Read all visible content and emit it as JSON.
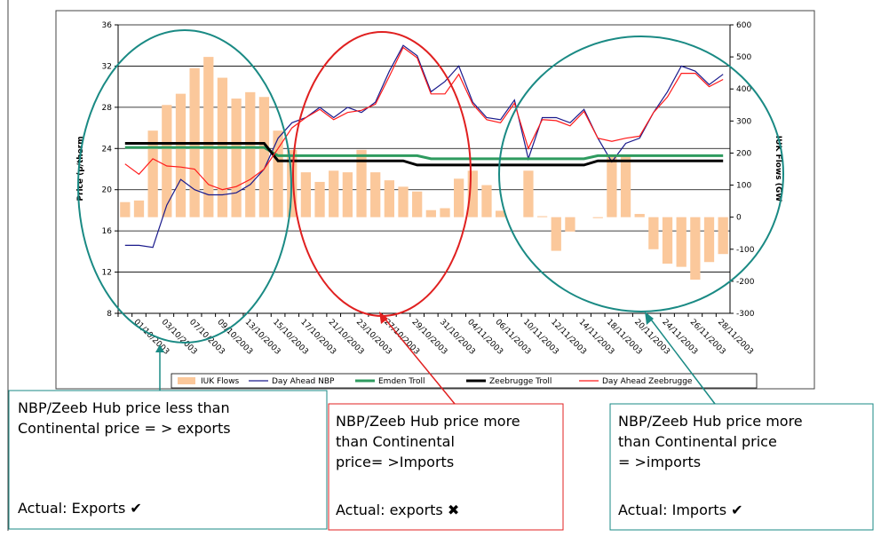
{
  "chart_data": {
    "type": "bar-line",
    "ylabel": "Price (p/therm",
    "y2label": "IUK Flows (GW",
    "categories": [
      null,
      "01/10/2003",
      null,
      "03/10/2003",
      null,
      "07/10/2003",
      null,
      "09/10/2003",
      null,
      "13/10/2003",
      null,
      "15/10/2003",
      null,
      "17/10/2003",
      null,
      "21/10/2003",
      null,
      "23/10/2003",
      null,
      "27/10/2003",
      null,
      "29/10/2003",
      null,
      "31/10/2003",
      null,
      "04/11/2003",
      null,
      "06/11/2003",
      null,
      "10/11/2003",
      null,
      "12/11/2003",
      null,
      "14/11/2003",
      null,
      "18/11/2003",
      null,
      "20/11/2003",
      null,
      "24/11/2003",
      null,
      "26/11/2003",
      null,
      "28/11/2003"
    ],
    "series": [
      {
        "name": "IUK Flows",
        "type": "bar",
        "axis": "y2",
        "color": "#fbc89b",
        "values": [
          47,
          52,
          270,
          350,
          385,
          465,
          500,
          435,
          370,
          390,
          375,
          270,
          210,
          140,
          110,
          145,
          140,
          210,
          140,
          115,
          95,
          80,
          22,
          28,
          120,
          145,
          100,
          20,
          0,
          145,
          3,
          -105,
          -45,
          0,
          -3,
          195,
          190,
          10,
          -100,
          -145,
          -155,
          -195,
          -140,
          -115
        ]
      },
      {
        "name": "Day Ahead NBP",
        "type": "line",
        "color": "#1a1a8c",
        "values": [
          14.6,
          14.6,
          14.4,
          18.5,
          21,
          20,
          19.5,
          19.5,
          19.7,
          20.5,
          22,
          25,
          26.5,
          27,
          28,
          27,
          28,
          27.5,
          28.5,
          31.5,
          34,
          33,
          29.5,
          30.5,
          32,
          28.5,
          27,
          26.8,
          28.7,
          23,
          27,
          27,
          26.5,
          27.8,
          25,
          22.7,
          24.5,
          25,
          27.5,
          29.5,
          32,
          31.5,
          30.2,
          31.2
        ]
      },
      {
        "name": "Emden Troll",
        "type": "line",
        "color": "#2e9b5f",
        "width": 3,
        "values": [
          24.1,
          24.1,
          24.1,
          24.1,
          24.1,
          24.1,
          24.1,
          24.1,
          24.1,
          24.1,
          24.1,
          23.3,
          23.3,
          23.3,
          23.3,
          23.3,
          23.3,
          23.3,
          23.3,
          23.3,
          23.3,
          23.3,
          23,
          23,
          23,
          23,
          23,
          23,
          23,
          23,
          23,
          23,
          23,
          23,
          23.3,
          23.3,
          23.3,
          23.3,
          23.3,
          23.3,
          23.3,
          23.3,
          23.3,
          23.3
        ]
      },
      {
        "name": "Zeebrugge Troll",
        "type": "line",
        "color": "#000000",
        "width": 3,
        "values": [
          24.5,
          24.5,
          24.5,
          24.5,
          24.5,
          24.5,
          24.5,
          24.5,
          24.5,
          24.5,
          24.5,
          22.8,
          22.8,
          22.8,
          22.8,
          22.8,
          22.8,
          22.8,
          22.8,
          22.8,
          22.8,
          22.4,
          22.4,
          22.4,
          22.4,
          22.4,
          22.4,
          22.4,
          22.4,
          22.4,
          22.4,
          22.4,
          22.4,
          22.4,
          22.8,
          22.8,
          22.8,
          22.8,
          22.8,
          22.8,
          22.8,
          22.8,
          22.8,
          22.8
        ]
      },
      {
        "name": "Day Ahead Zeebrugge",
        "type": "line",
        "color": "#ff1a1a",
        "values": [
          22.5,
          21.5,
          23,
          22.3,
          22.2,
          22,
          20.5,
          20,
          20.3,
          21,
          22,
          24,
          26,
          27,
          27.8,
          26.8,
          27.5,
          27.7,
          28.3,
          31,
          33.8,
          32.8,
          29.3,
          29.3,
          31.2,
          28.3,
          26.8,
          26.5,
          28.4,
          24,
          26.8,
          26.7,
          26.2,
          27.6,
          25,
          24.7,
          25,
          25.2,
          27.5,
          29,
          31.3,
          31.3,
          30,
          30.7
        ]
      }
    ],
    "ylim": [
      8,
      36
    ],
    "yticks": [
      8,
      12,
      16,
      20,
      24,
      28,
      32,
      36
    ],
    "y2lim": [
      -300,
      600
    ],
    "y2ticks": [
      -300,
      -200,
      -100,
      0,
      100,
      200,
      300,
      400,
      500,
      600
    ],
    "grid": true,
    "legend": "bottom"
  },
  "callouts": [
    {
      "lines": [
        "NBP/Zeeb Hub price less than",
        "Continental price = > exports"
      ],
      "actual": "Actual: Exports ✔"
    },
    {
      "lines": [
        "NBP/Zeeb Hub price more",
        "than Continental",
        "price= >Imports"
      ],
      "actual": "Actual: exports ✖"
    },
    {
      "lines": [
        "NBP/Zeeb Hub price more",
        "than Continental price",
        "= >imports"
      ],
      "actual": "Actual: Imports ✔"
    }
  ]
}
